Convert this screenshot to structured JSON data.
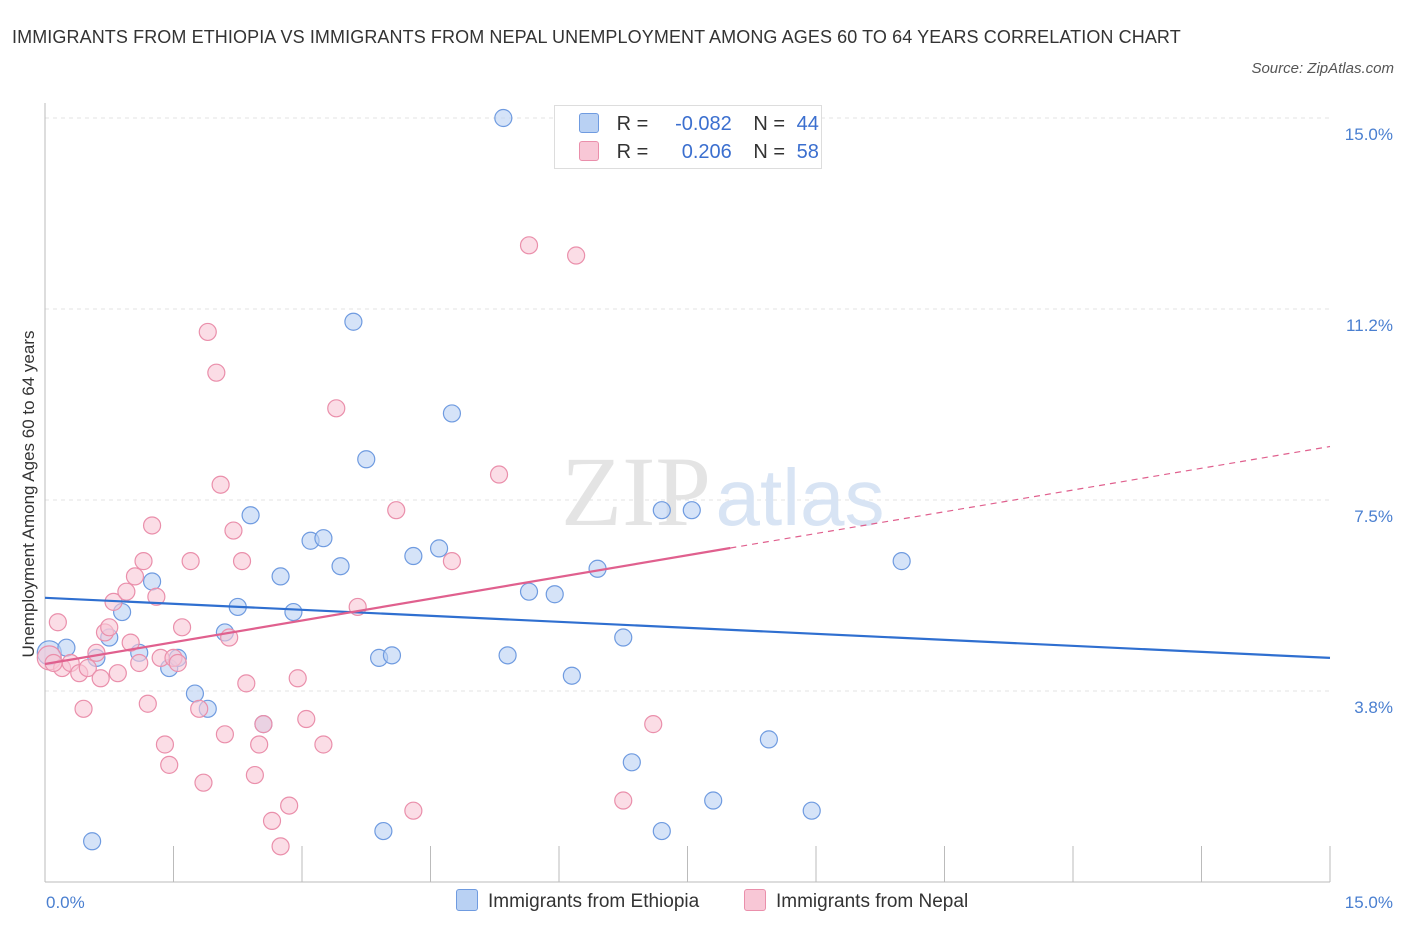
{
  "title": "IMMIGRANTS FROM ETHIOPIA VS IMMIGRANTS FROM NEPAL UNEMPLOYMENT AMONG AGES 60 TO 64 YEARS CORRELATION CHART",
  "source": "Source: ZipAtlas.com",
  "watermark": {
    "zip": "ZIP",
    "atlas": "atlas"
  },
  "colors": {
    "ethiopia_fill": "#b9d1f3",
    "ethiopia_stroke": "#6f9be0",
    "ethiopia_line": "#2f6fd0",
    "nepal_fill": "#f8c7d6",
    "nepal_stroke": "#ea8fab",
    "nepal_line": "#e0608e",
    "grid": "#e3e3e3",
    "tick_label": "#4a7fd0"
  },
  "legend_top": {
    "rows": [
      {
        "r_label": "R =",
        "r_value": "-0.082",
        "n_label": "N =",
        "n_value": "44"
      },
      {
        "r_label": "R =",
        "r_value": "0.206",
        "n_label": "N =",
        "n_value": "58"
      }
    ]
  },
  "chart_data": {
    "type": "scatter",
    "xlabel": "",
    "ylabel": "Unemployment Among Ages 60 to 64 years",
    "xlim": [
      0,
      15
    ],
    "ylim": [
      0,
      15
    ],
    "x_tick_labels": [
      "0.0%",
      "15.0%"
    ],
    "y_ticks": [
      {
        "value": 15.0,
        "label": "15.0%"
      },
      {
        "value": 11.25,
        "label": "11.2%"
      },
      {
        "value": 7.5,
        "label": "7.5%"
      },
      {
        "value": 3.75,
        "label": "3.8%"
      }
    ],
    "grid": "horizontal dashed",
    "legend_placement": "bottom-center",
    "series": [
      {
        "name": "Immigrants from Ethiopia",
        "trend": {
          "x": [
            0,
            15
          ],
          "y": [
            5.58,
            4.4
          ],
          "dashed_from": null
        },
        "points": [
          [
            0.05,
            4.5
          ],
          [
            0.25,
            4.6
          ],
          [
            0.6,
            4.4
          ],
          [
            0.75,
            4.8
          ],
          [
            0.9,
            5.3
          ],
          [
            1.1,
            4.5
          ],
          [
            1.25,
            5.9
          ],
          [
            1.45,
            4.2
          ],
          [
            1.55,
            4.4
          ],
          [
            1.75,
            3.7
          ],
          [
            1.9,
            3.4
          ],
          [
            2.1,
            4.9
          ],
          [
            2.25,
            5.4
          ],
          [
            2.4,
            7.2
          ],
          [
            2.55,
            3.1
          ],
          [
            2.75,
            6.0
          ],
          [
            2.9,
            5.3
          ],
          [
            3.1,
            6.7
          ],
          [
            3.25,
            6.75
          ],
          [
            3.45,
            6.2
          ],
          [
            3.6,
            11.0
          ],
          [
            3.75,
            8.3
          ],
          [
            3.9,
            4.4
          ],
          [
            4.05,
            4.45
          ],
          [
            4.3,
            6.4
          ],
          [
            4.6,
            6.55
          ],
          [
            4.75,
            9.2
          ],
          [
            5.35,
            15.0
          ],
          [
            5.4,
            4.45
          ],
          [
            5.65,
            5.7
          ],
          [
            5.95,
            5.65
          ],
          [
            6.15,
            4.05
          ],
          [
            6.45,
            6.15
          ],
          [
            6.75,
            4.8
          ],
          [
            6.85,
            2.35
          ],
          [
            7.2,
            7.3
          ],
          [
            7.2,
            1.0
          ],
          [
            7.55,
            7.3
          ],
          [
            7.8,
            1.6
          ],
          [
            8.45,
            2.8
          ],
          [
            8.95,
            1.4
          ],
          [
            10.0,
            6.3
          ],
          [
            0.55,
            0.8
          ],
          [
            3.95,
            1.0
          ]
        ]
      },
      {
        "name": "Immigrants from Nepal",
        "trend": {
          "x": [
            0,
            15
          ],
          "y": [
            4.28,
            8.55
          ],
          "dashed_from": 8.0
        },
        "points": [
          [
            0.05,
            4.4
          ],
          [
            0.15,
            5.1
          ],
          [
            0.2,
            4.2
          ],
          [
            0.3,
            4.3
          ],
          [
            0.4,
            4.1
          ],
          [
            0.45,
            3.4
          ],
          [
            0.5,
            4.2
          ],
          [
            0.6,
            4.5
          ],
          [
            0.7,
            4.9
          ],
          [
            0.75,
            5.0
          ],
          [
            0.8,
            5.5
          ],
          [
            0.85,
            4.1
          ],
          [
            0.95,
            5.7
          ],
          [
            1.0,
            4.7
          ],
          [
            1.05,
            6.0
          ],
          [
            1.1,
            4.3
          ],
          [
            1.15,
            6.3
          ],
          [
            1.2,
            3.5
          ],
          [
            1.25,
            7.0
          ],
          [
            1.3,
            5.6
          ],
          [
            1.35,
            4.4
          ],
          [
            1.4,
            2.7
          ],
          [
            1.45,
            2.3
          ],
          [
            1.5,
            4.4
          ],
          [
            1.6,
            5.0
          ],
          [
            1.7,
            6.3
          ],
          [
            1.8,
            3.4
          ],
          [
            1.85,
            1.95
          ],
          [
            1.9,
            10.8
          ],
          [
            2.0,
            10.0
          ],
          [
            2.05,
            7.8
          ],
          [
            2.1,
            2.9
          ],
          [
            2.15,
            4.8
          ],
          [
            2.2,
            6.9
          ],
          [
            2.3,
            6.3
          ],
          [
            2.35,
            3.9
          ],
          [
            2.45,
            2.1
          ],
          [
            2.5,
            2.7
          ],
          [
            2.55,
            3.1
          ],
          [
            2.65,
            1.2
          ],
          [
            2.75,
            0.7
          ],
          [
            2.85,
            1.5
          ],
          [
            2.95,
            4.0
          ],
          [
            3.05,
            3.2
          ],
          [
            3.25,
            2.7
          ],
          [
            3.4,
            9.3
          ],
          [
            3.65,
            5.4
          ],
          [
            4.1,
            7.3
          ],
          [
            4.3,
            1.4
          ],
          [
            4.75,
            6.3
          ],
          [
            5.3,
            8.0
          ],
          [
            5.65,
            12.5
          ],
          [
            6.2,
            12.3
          ],
          [
            6.75,
            1.6
          ],
          [
            7.1,
            3.1
          ],
          [
            0.1,
            4.3
          ],
          [
            0.65,
            4.0
          ],
          [
            1.55,
            4.3
          ]
        ]
      }
    ]
  },
  "bottom_legend": [
    "Immigrants from Ethiopia",
    "Immigrants from Nepal"
  ]
}
